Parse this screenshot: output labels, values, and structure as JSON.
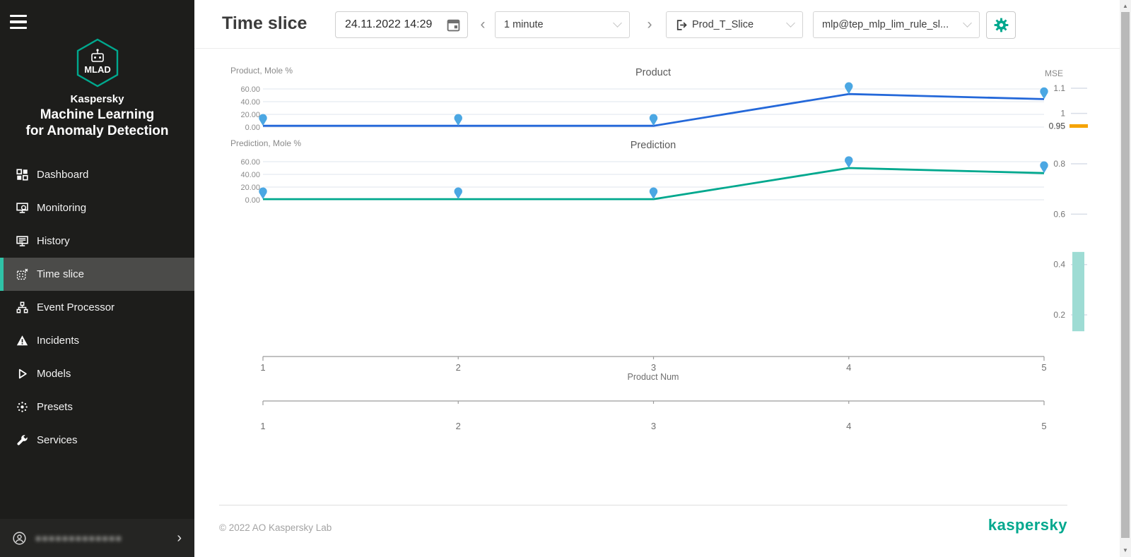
{
  "app": {
    "badge": "MLAD",
    "brand": "Kaspersky",
    "product_line1": "Machine Learning",
    "product_line2": "for Anomaly Detection"
  },
  "sidebar": {
    "nav": {
      "items": [
        {
          "label": "Dashboard",
          "icon": "dashboard-icon",
          "active": false
        },
        {
          "label": "Monitoring",
          "icon": "monitoring-icon",
          "active": false
        },
        {
          "label": "History",
          "icon": "history-icon",
          "active": false
        },
        {
          "label": "Time slice",
          "icon": "time-slice-icon",
          "active": true
        },
        {
          "label": "Event Processor",
          "icon": "event-processor-icon",
          "active": false
        },
        {
          "label": "Incidents",
          "icon": "incidents-icon",
          "active": false
        },
        {
          "label": "Models",
          "icon": "models-icon",
          "active": false
        },
        {
          "label": "Presets",
          "icon": "presets-icon",
          "active": false
        },
        {
          "label": "Services",
          "icon": "services-icon",
          "active": false
        }
      ]
    },
    "user": {
      "email_redacted": "●●●●●●●●●●●●●",
      "chevron": "›"
    }
  },
  "header": {
    "title": "Time slice",
    "datetime_value": "24.11.2022  14:29",
    "prev": "‹",
    "next": "›",
    "interval": {
      "value": "1 minute"
    },
    "slice": {
      "value": "Prod_T_Slice"
    },
    "model": {
      "value": "mlp@tep_mlp_lim_rule_sl..."
    }
  },
  "footer": {
    "copyright": "© 2022 AO Kaspersky Lab",
    "brand": "kaspersky"
  },
  "scrollbar": {
    "up": "▲",
    "down": "▼"
  },
  "colors": {
    "accent": "#00a88e",
    "active_item_accent": "#2fc2a7",
    "product_line": "#2468d9",
    "prediction_line": "#00a88e",
    "marker": "#4ba7e3",
    "threshold": "#f5a300",
    "mse_bar": "#9edcd4",
    "grid": "#dfe5ee",
    "axis": "#9c9c9c"
  },
  "chart_data": [
    {
      "type": "line",
      "title": "Product",
      "ylabel": "Product, Mole %",
      "x": [
        1,
        2,
        3,
        4,
        5
      ],
      "values": [
        2,
        2,
        2,
        52,
        44
      ],
      "ylim": [
        0,
        60
      ],
      "yticks": [
        "60.00",
        "40.00",
        "20.00",
        "0.00"
      ],
      "grid": true,
      "line_color": "#2468d9",
      "marker": "pin",
      "marker_color": "#4ba7e3"
    },
    {
      "type": "line",
      "title": "Prediction",
      "ylabel": "Prediction, Mole %",
      "x": [
        1,
        2,
        3,
        4,
        5
      ],
      "values": [
        1,
        1,
        1,
        50,
        42
      ],
      "ylim": [
        0,
        60
      ],
      "yticks": [
        "60.00",
        "40.00",
        "20.00",
        "0.00"
      ],
      "grid": true,
      "line_color": "#00a88e",
      "marker": "pin",
      "marker_color": "#4ba7e3"
    },
    {
      "type": "axis",
      "name": "MSE",
      "side": "right",
      "ticks": [
        1.1,
        1,
        0.95,
        0.8,
        0.6,
        0.4,
        0.2
      ],
      "tick_labels": [
        "1.1",
        "1",
        "0.95",
        "0.8",
        "0.6",
        "0.4",
        "0.2"
      ],
      "threshold_marker": {
        "value": 0.95,
        "color": "#f5a300"
      },
      "bar": {
        "from": 0.135,
        "to": 0.45,
        "color": "#9edcd4"
      }
    },
    {
      "type": "axis",
      "side": "bottom",
      "ticks": [
        1,
        2,
        3,
        4,
        5
      ],
      "xlabel": "Product Num"
    },
    {
      "type": "axis",
      "side": "bottom",
      "ticks": [
        1,
        2,
        3,
        4,
        5
      ],
      "xlabel": ""
    }
  ]
}
